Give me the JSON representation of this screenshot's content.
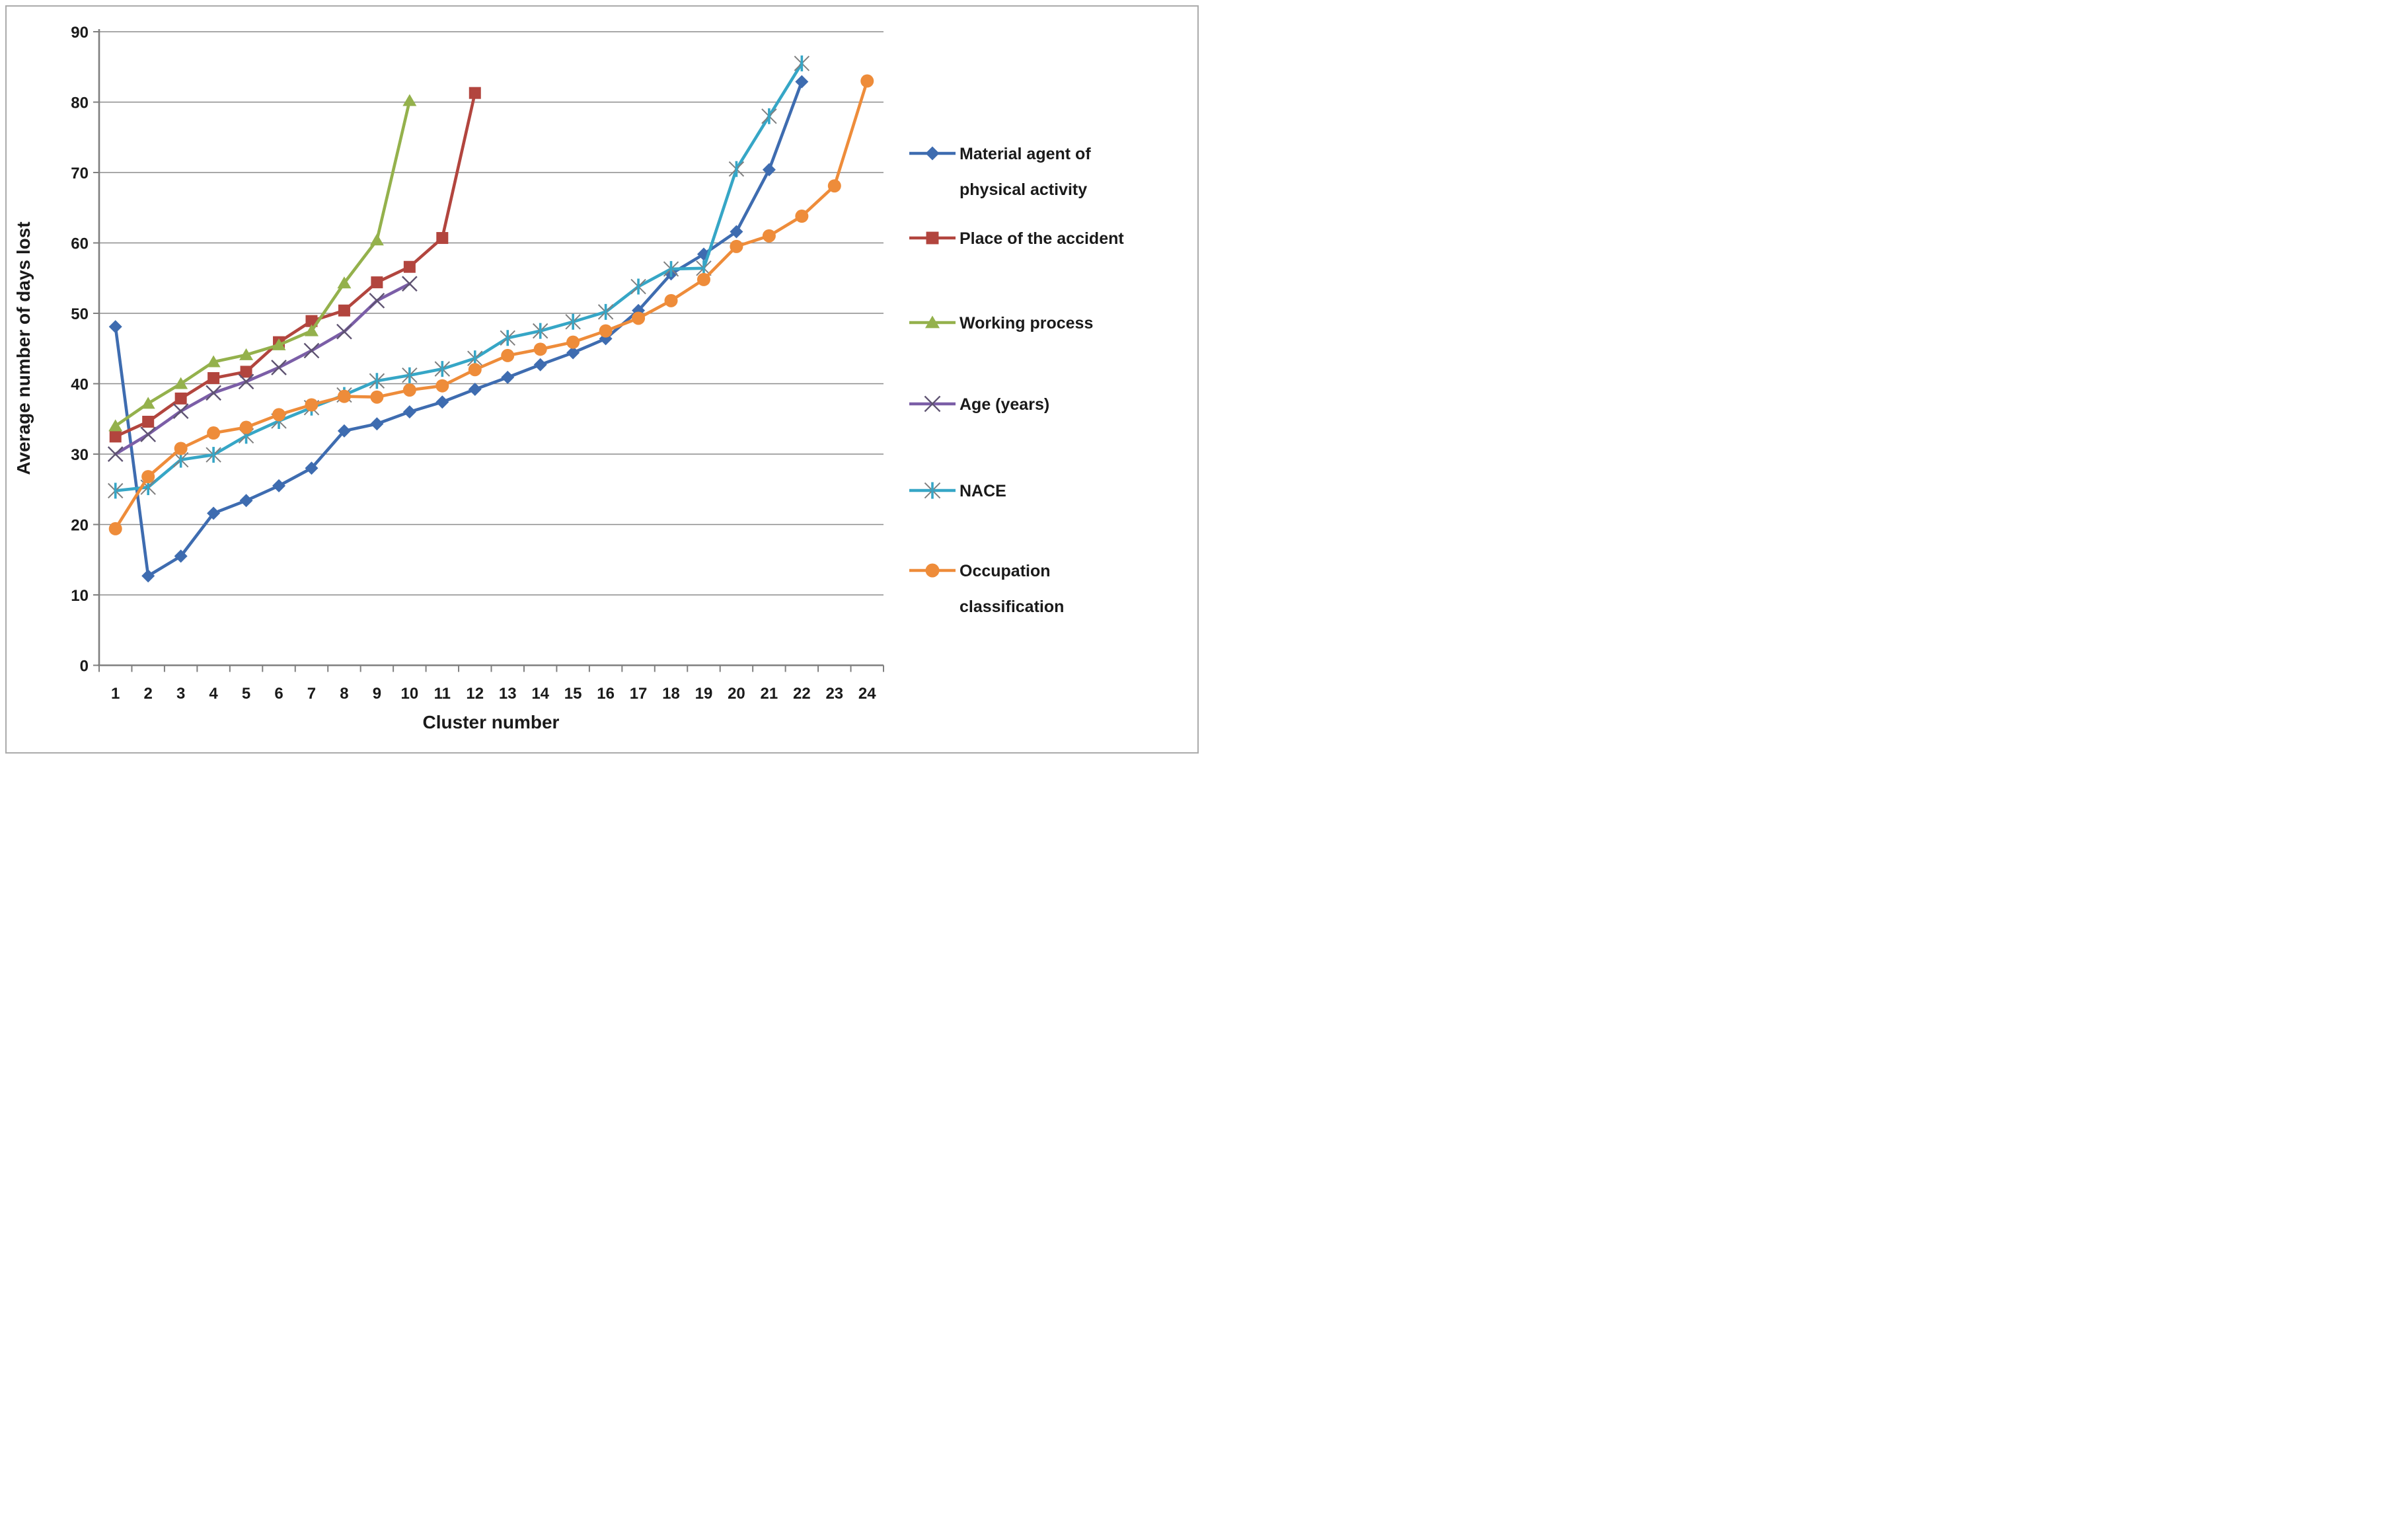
{
  "figure": {
    "background": "#ffffff",
    "border_color": "#ababab",
    "gridline_color": "#8c8c8c",
    "axis_color": "#7f7f7f",
    "text_color": "#1a1a1a"
  },
  "chart_data": {
    "type": "line",
    "title": "",
    "xlabel": "Cluster number",
    "ylabel": "Average number of days lost",
    "categories": [
      1,
      2,
      3,
      4,
      5,
      6,
      7,
      8,
      9,
      10,
      11,
      12,
      13,
      14,
      15,
      16,
      17,
      18,
      19,
      20,
      21,
      22,
      23,
      24
    ],
    "ylim": [
      0,
      90
    ],
    "ytick_step": 10,
    "yticks": [
      0,
      10,
      20,
      30,
      40,
      50,
      60,
      70,
      80,
      90
    ],
    "grid": "horizontal",
    "legend_position": "right",
    "series": [
      {
        "name": "Material agent of physical activity",
        "marker": "diamond",
        "color": "#3e6cb0",
        "values": [
          48.1,
          12.7,
          15.5,
          21.6,
          23.4,
          25.5,
          28.0,
          33.3,
          34.3,
          36.0,
          37.4,
          39.2,
          40.9,
          42.7,
          44.4,
          46.4,
          50.4,
          55.6,
          58.4,
          61.6,
          70.4,
          82.9
        ]
      },
      {
        "name": "Place of the accident",
        "marker": "square",
        "color": "#b2453e",
        "values": [
          32.5,
          34.6,
          37.9,
          40.8,
          41.7,
          45.9,
          48.9,
          50.4,
          54.4,
          56.6,
          60.7,
          81.3
        ]
      },
      {
        "name": "Working process",
        "marker": "triangle",
        "color": "#94b14c",
        "values": [
          34.0,
          37.2,
          40.0,
          43.1,
          44.1,
          45.5,
          47.5,
          54.3,
          60.4,
          80.2
        ]
      },
      {
        "name": "Age (years)",
        "marker": "x",
        "color": "#7b5ea7",
        "marker_accent": "#5e5371",
        "values": [
          30.0,
          32.8,
          36.1,
          38.7,
          40.3,
          42.3,
          44.7,
          47.4,
          51.8,
          54.2
        ]
      },
      {
        "name": "NACE",
        "marker": "asterisk",
        "color": "#36a6c6",
        "marker_accent": "#7f7f7f",
        "values": [
          24.8,
          25.3,
          29.2,
          29.9,
          32.6,
          34.7,
          36.6,
          38.4,
          40.4,
          41.2,
          42.1,
          43.6,
          46.5,
          47.5,
          48.8,
          50.2,
          53.8,
          56.3,
          56.4,
          70.5,
          78.0,
          85.5
        ]
      },
      {
        "name": "Occupation classification",
        "marker": "circle",
        "color": "#ee8c3a",
        "values": [
          19.4,
          26.8,
          30.8,
          33.0,
          33.8,
          35.6,
          37.0,
          38.2,
          38.1,
          39.1,
          39.7,
          42.0,
          44.0,
          44.9,
          45.9,
          47.5,
          49.3,
          51.8,
          54.8,
          59.5,
          61.0,
          63.8,
          68.1,
          83.0
        ]
      }
    ],
    "legend_labels": [
      [
        "Material agent of",
        "physical activity"
      ],
      [
        "Place of the accident"
      ],
      [
        "Working process"
      ],
      [
        "Age (years)"
      ],
      [
        "NACE"
      ],
      [
        "Occupation",
        "classification"
      ]
    ]
  }
}
